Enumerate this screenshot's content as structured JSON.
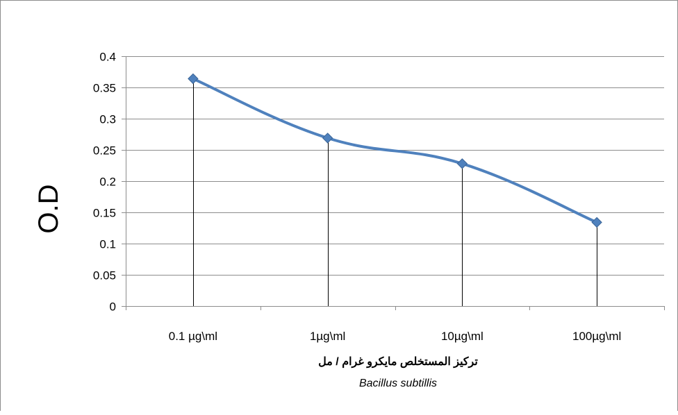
{
  "chart_data": {
    "type": "line",
    "categories": [
      "0.1 µg\\ml",
      "1µg\\ml",
      "10µg\\ml",
      "100µg\\ml"
    ],
    "series": [
      {
        "values": [
          0.364,
          0.269,
          0.228,
          0.134
        ],
        "color": "#4f81bd"
      }
    ],
    "ylabel": "O.D",
    "xlabel": "تركيز المستخلص مايكرو غرام / مل",
    "xlabel_subtitle": "Bacillus subtillis",
    "ylim": [
      0,
      0.4
    ],
    "yticks": [
      "0",
      "0.05",
      "0.1",
      "0.15",
      "0.2",
      "0.25",
      "0.3",
      "0.35",
      "0.4"
    ],
    "grid": true,
    "legend": "none",
    "drop_lines": true
  }
}
